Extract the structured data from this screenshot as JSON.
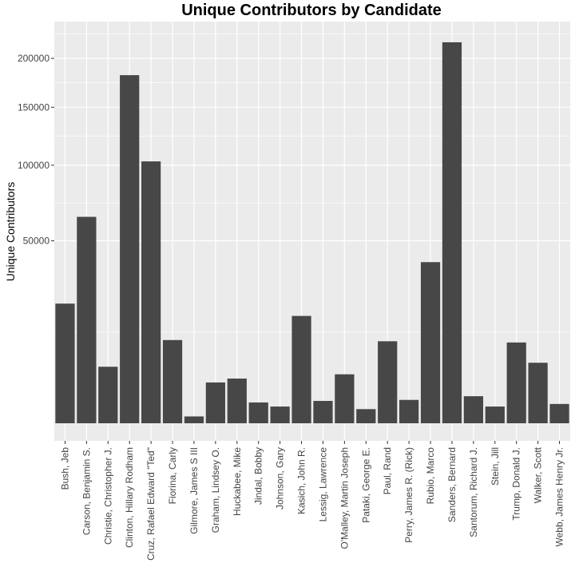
{
  "chart_data": {
    "type": "bar",
    "title": "Unique Contributors by Candidate",
    "xlabel": "",
    "ylabel": "Unique Contributors",
    "y_scale": "sqrt",
    "ylim": [
      0,
      230000
    ],
    "y_ticks": [
      50000,
      100000,
      150000,
      200000
    ],
    "y_tick_labels": [
      "50000",
      "100000",
      "150000",
      "200000"
    ],
    "grid": true,
    "categories": [
      "Bush, Jeb",
      "Carson, Benjamin S.",
      "Christie, Christopher J.",
      "Clinton, Hillary Rodham",
      "Cruz, Rafael Edward \"Ted\"",
      "Fiorina, Carly",
      "Gilmore, James S III",
      "Graham, Lindsey O.",
      "Huckabee, Mike",
      "Jindal, Bobby",
      "Johnson, Gary",
      "Kasich, John R.",
      "Lessig, Lawrence",
      "O'Malley, Martin Joseph",
      "Pataki, George E.",
      "Paul, Rand",
      "Perry, James R. (Rick)",
      "Rubio, Marco",
      "Sanders, Bernard",
      "Santorum, Richard J.",
      "Stein, Jill",
      "Trump, Donald J.",
      "Walker, Scott",
      "Webb, James Henry Jr."
    ],
    "values": [
      21500,
      64000,
      4800,
      182000,
      103000,
      10400,
      70,
      2500,
      3000,
      650,
      420,
      17300,
      750,
      3600,
      300,
      10100,
      820,
      39000,
      218000,
      1100,
      420,
      9800,
      5500,
      560
    ],
    "bar_color": "#474747",
    "panel_color": "#ebebeb",
    "grid_color": "#ffffff"
  }
}
